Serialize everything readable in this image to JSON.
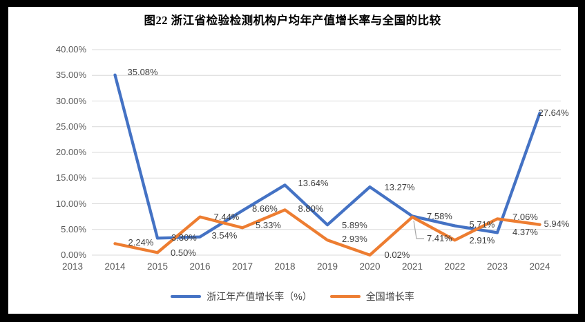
{
  "title": "图22 浙江省检验检测机构户均年产值增长率与全国的比较",
  "frame": {
    "border_color": "#000000",
    "background": "#ffffff"
  },
  "colors": {
    "series_blue": "#4472C4",
    "series_orange": "#ED7D31",
    "gridline": "#D9D9D9",
    "axis_text": "#595959",
    "data_label_text": "#404040",
    "leader_line": "#A6A6A6"
  },
  "chart_data": {
    "type": "line",
    "title": "图22 浙江省检验检测机构户均年产值增长率与全国的比较",
    "categories": [
      "2013",
      "2014",
      "2015",
      "2016",
      "2017",
      "2018",
      "2019",
      "2020",
      "2021",
      "2022",
      "2023",
      "2024"
    ],
    "series": [
      {
        "name": "浙江年产值增长率（%）",
        "color": "#4472C4",
        "values": [
          null,
          35.08,
          3.3,
          3.54,
          8.66,
          13.64,
          5.89,
          13.27,
          7.58,
          5.71,
          4.37,
          27.64
        ]
      },
      {
        "name": "全国增长率",
        "color": "#ED7D31",
        "values": [
          null,
          2.24,
          0.5,
          7.44,
          5.33,
          8.8,
          2.93,
          0.02,
          7.41,
          2.91,
          7.06,
          5.94
        ]
      }
    ],
    "y_tick_labels": [
      "0.00%",
      "5.00%",
      "10.00%",
      "15.00%",
      "20.00%",
      "25.00%",
      "30.00%",
      "35.00%",
      "40.00%"
    ],
    "ylim": [
      0,
      40
    ],
    "y_step": 5,
    "grid": true,
    "data_labels_shown": true,
    "legend_position": "bottom"
  },
  "legend": {
    "items": [
      {
        "label": "浙江年产值增长率（%）",
        "color": "#4472C4"
      },
      {
        "label": "全国增长率",
        "color": "#ED7D31"
      }
    ]
  }
}
